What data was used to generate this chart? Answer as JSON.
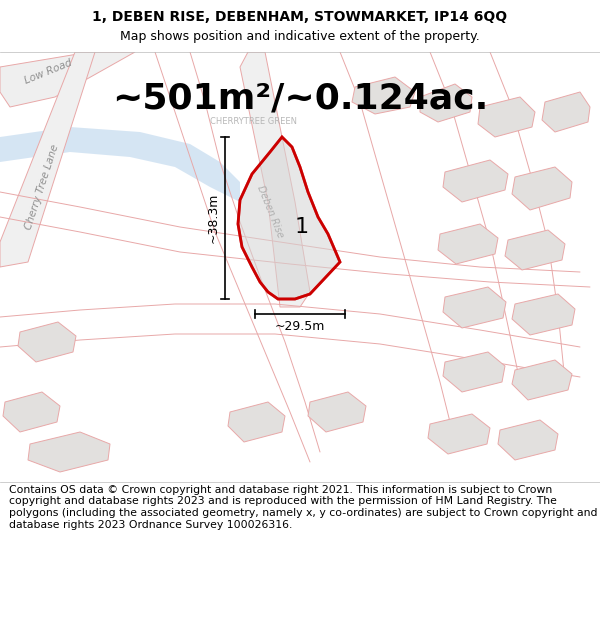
{
  "title": "1, DEBEN RISE, DEBENHAM, STOWMARKET, IP14 6QQ",
  "subtitle": "Map shows position and indicative extent of the property.",
  "area_text": "~501m²/~0.124ac.",
  "dim_width": "~29.5m",
  "dim_height": "~38.3m",
  "label_number": "1",
  "road_label_1": "Low Road",
  "road_label_2": "Cherry Tree Lane",
  "road_label_3": "Deben Rise",
  "place_label": "CHERRYTREE GREEN",
  "footer": "Contains OS data © Crown copyright and database right 2021. This information is subject to Crown copyright and database rights 2023 and is reproduced with the permission of HM Land Registry. The polygons (including the associated geometry, namely x, y co-ordinates) are subject to Crown copyright and database rights 2023 Ordnance Survey 100026316.",
  "bg_color": "#f2f0ee",
  "water_color": "#c8ddf0",
  "property_fill": "#d4d4d4",
  "property_stroke": "#cc0000",
  "building_fill": "#e2e0de",
  "building_stroke": "#e8a8a8",
  "road_stroke": "#e8a8a8",
  "title_fontsize": 10,
  "subtitle_fontsize": 9,
  "area_fontsize": 26,
  "footer_fontsize": 7.8,
  "label_fontsize": 16,
  "dim_fontsize": 9
}
